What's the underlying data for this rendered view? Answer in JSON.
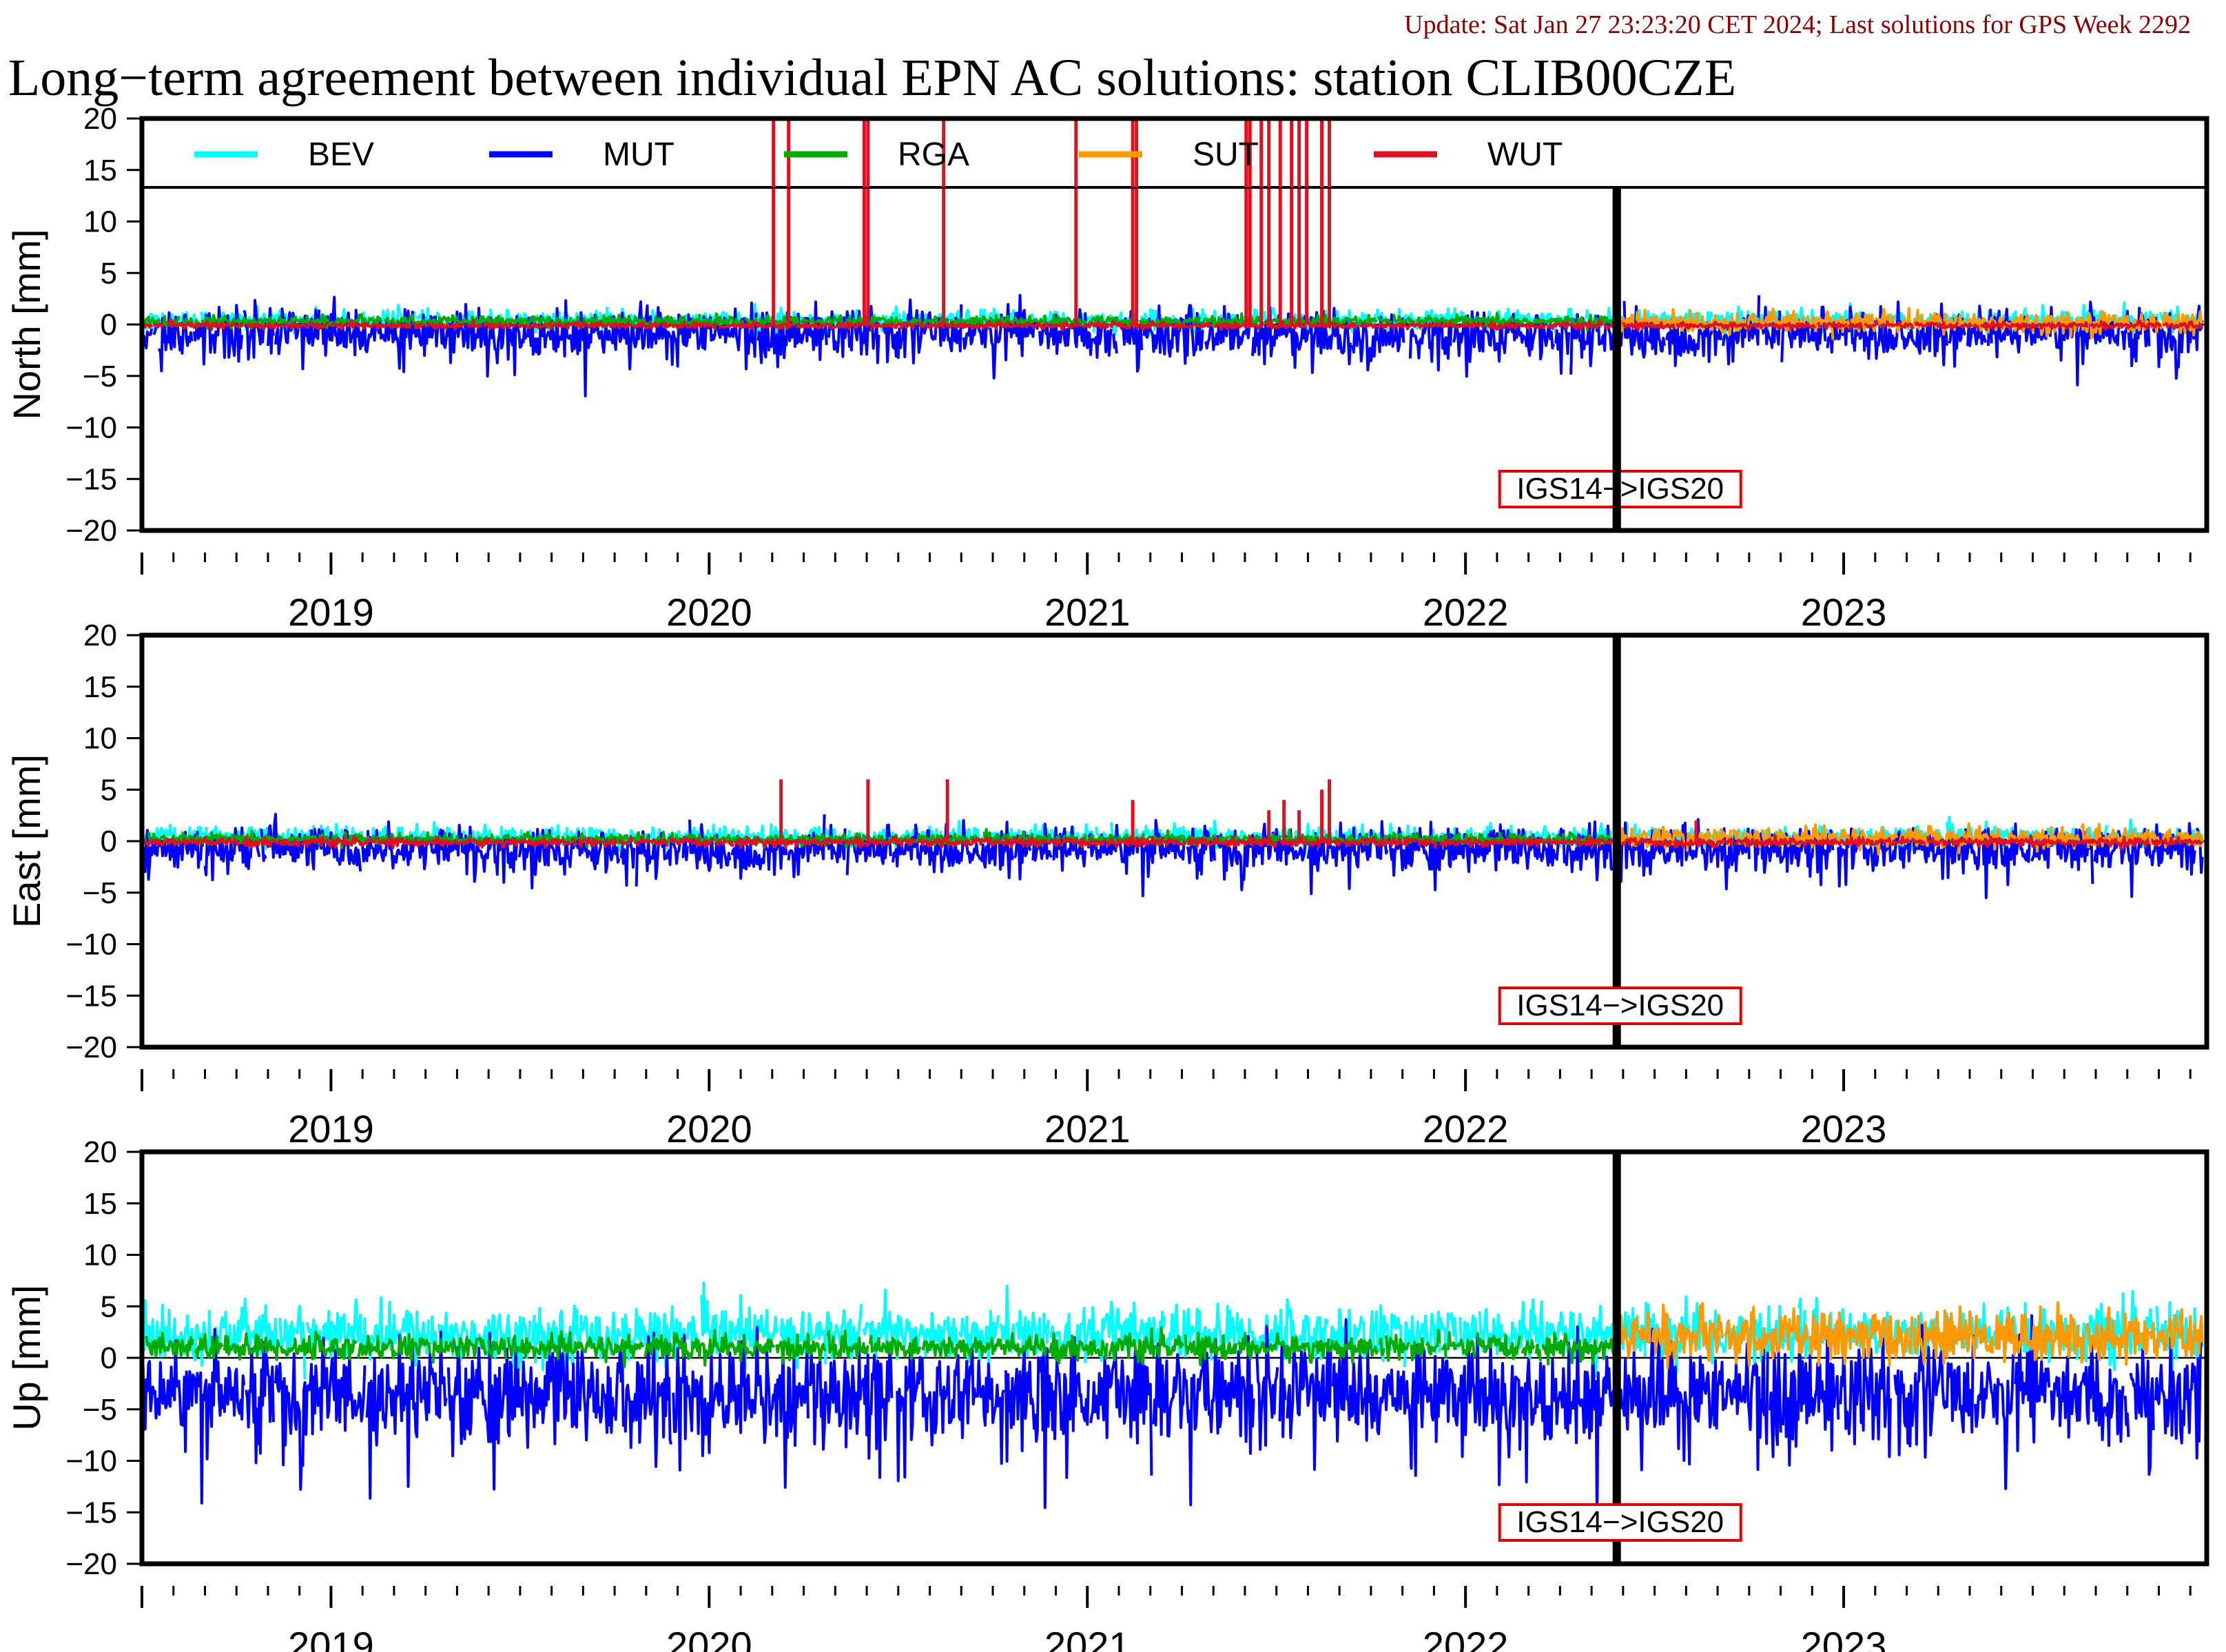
{
  "update_text": "Update: Sat Jan 27 23:23:20 CET 2024; Last solutions for GPS Week 2292",
  "title": "Long−term agreement between individual EPN AC solutions: station CLIB00CZE",
  "colors": {
    "BEV": "#00ffff",
    "MUT": "#0000ff",
    "RGA": "#00aa00",
    "SUT": "#ff9900",
    "WUT": "#dd1122",
    "update_text": "#8b0000",
    "frame_label_border": "#dd0000"
  },
  "legend": [
    "BEV",
    "MUT",
    "RGA",
    "SUT",
    "WUT"
  ],
  "frame_change_label": "IGS14−>IGS20",
  "chart_data": [
    {
      "type": "line",
      "panel": "north",
      "ylabel": "North [mm]",
      "ylim": [
        -20,
        20
      ],
      "yticks": [
        "20",
        "15",
        "10",
        "5",
        "0",
        "−5",
        "−10",
        "−15",
        "−20"
      ],
      "xlim": [
        2018.5,
        2023.96
      ],
      "year_labels": [
        "2019",
        "2020",
        "2021",
        "2022",
        "2023"
      ],
      "frame_change_x": 2022.4,
      "series": [
        {
          "name": "BEV",
          "mean": 0.4,
          "sd": 0.5,
          "start": 2018.5,
          "end": 2023.95
        },
        {
          "name": "MUT",
          "mean": -0.8,
          "sd": 1.1,
          "start": 2018.5,
          "end": 2023.95
        },
        {
          "name": "RGA",
          "mean": 0.3,
          "sd": 0.25,
          "start": 2018.5,
          "end": 2022.4
        },
        {
          "name": "SUT",
          "mean": 0.2,
          "sd": 0.5,
          "start": 2022.4,
          "end": 2023.95
        },
        {
          "name": "WUT",
          "mean": -0.1,
          "sd": 0.15,
          "start": 2018.5,
          "end": 2023.95,
          "spikes": [
            [
              2020.17,
              20
            ],
            [
              2020.21,
              20
            ],
            [
              2020.41,
              20
            ],
            [
              2020.42,
              20
            ],
            [
              2020.62,
              20
            ],
            [
              2020.97,
              20
            ],
            [
              2021.12,
              20
            ],
            [
              2021.13,
              20
            ],
            [
              2021.42,
              20
            ],
            [
              2021.43,
              20
            ],
            [
              2021.46,
              20
            ],
            [
              2021.48,
              20
            ],
            [
              2021.51,
              20
            ],
            [
              2021.54,
              20
            ],
            [
              2021.56,
              20
            ],
            [
              2021.58,
              20
            ],
            [
              2021.62,
              20
            ],
            [
              2021.64,
              20
            ]
          ]
        }
      ]
    },
    {
      "type": "line",
      "panel": "east",
      "ylabel": "East [mm]",
      "ylim": [
        -20,
        20
      ],
      "yticks": [
        "20",
        "15",
        "10",
        "5",
        "0",
        "−5",
        "−10",
        "−15",
        "−20"
      ],
      "xlim": [
        2018.5,
        2023.96
      ],
      "year_labels": [
        "2019",
        "2020",
        "2021",
        "2022",
        "2023"
      ],
      "frame_change_x": 2022.4,
      "series": [
        {
          "name": "BEV",
          "mean": 0.4,
          "sd": 0.5,
          "start": 2018.5,
          "end": 2023.95
        },
        {
          "name": "MUT",
          "mean": -0.7,
          "sd": 1.0,
          "start": 2018.5,
          "end": 2023.95
        },
        {
          "name": "RGA",
          "mean": 0.2,
          "sd": 0.25,
          "start": 2018.5,
          "end": 2022.4
        },
        {
          "name": "SUT",
          "mean": 0.3,
          "sd": 0.5,
          "start": 2022.4,
          "end": 2023.95
        },
        {
          "name": "WUT",
          "mean": -0.1,
          "sd": 0.2,
          "start": 2018.5,
          "end": 2023.95,
          "spikes": [
            [
              2020.19,
              6
            ],
            [
              2020.42,
              6
            ],
            [
              2020.63,
              6
            ],
            [
              2021.12,
              4
            ],
            [
              2021.48,
              3
            ],
            [
              2021.52,
              4
            ],
            [
              2021.56,
              3
            ],
            [
              2021.62,
              5
            ],
            [
              2021.64,
              6
            ],
            [
              2022.61,
              2
            ]
          ]
        }
      ]
    },
    {
      "type": "line",
      "panel": "up",
      "ylabel": "Up [mm]",
      "ylim": [
        -20,
        20
      ],
      "yticks": [
        "20",
        "15",
        "10",
        "5",
        "0",
        "−5",
        "−10",
        "−15",
        "−20"
      ],
      "xlim": [
        2018.5,
        2023.96
      ],
      "year_labels": [
        "2019",
        "2020",
        "2021",
        "2022",
        "2023"
      ],
      "frame_change_x": 2022.4,
      "series": [
        {
          "name": "BEV",
          "mean": 2.3,
          "sd": 1.3,
          "start": 2018.5,
          "end": 2023.95
        },
        {
          "name": "MUT",
          "mean": -3.5,
          "sd": 2.3,
          "start": 2018.5,
          "end": 2023.95
        },
        {
          "name": "RGA",
          "mean": 1.0,
          "sd": 0.6,
          "start": 2018.5,
          "end": 2022.4
        },
        {
          "name": "SUT",
          "mean": 2.0,
          "sd": 1.2,
          "start": 2022.4,
          "end": 2023.95
        },
        {
          "name": "WUT",
          "mean": 0.0,
          "sd": 0.0,
          "start": 2018.5,
          "end": 2018.5
        }
      ]
    }
  ]
}
